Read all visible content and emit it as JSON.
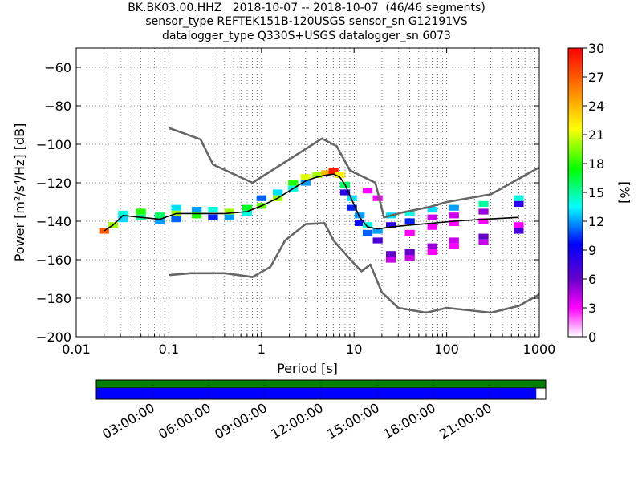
{
  "header": {
    "line1": "BK.BK03.00.HHZ   2018-10-07 -- 2018-10-07  (46/46 segments)",
    "line2": "sensor_type REFTEK151B-120USGS sensor_sn G12191VS",
    "line3": "datalogger_type Q330S+USGS datalogger_sn 6073"
  },
  "chart_data": [
    {
      "type": "heatmap",
      "xlabel": "Period [s]",
      "ylabel": "Power [m²/s⁴/Hz] [dB]",
      "x_scale": "log",
      "xlim": [
        0.01,
        1000
      ],
      "ylim": [
        -200,
        -50
      ],
      "x_ticks": [
        0.01,
        0.1,
        1,
        10,
        100,
        1000
      ],
      "x_tick_labels": [
        "0.01",
        "0.1",
        "1",
        "10",
        "100",
        "1000"
      ],
      "y_ticks": [
        -200,
        -180,
        -160,
        -140,
        -120,
        -100,
        -80,
        -60
      ],
      "y_tick_labels": [
        "−200",
        "−180",
        "−160",
        "−140",
        "−120",
        "−100",
        "−80",
        "−60"
      ],
      "grid": true,
      "colorbar": {
        "label": "[%]",
        "range": [
          0,
          30
        ],
        "ticks": [
          0,
          3,
          6,
          9,
          12,
          15,
          18,
          21,
          24,
          27,
          30
        ],
        "colors": [
          "#ffffff",
          "#ff00ff",
          "#6600cc",
          "#0000ff",
          "#00ffff",
          "#00ff00",
          "#ffff00",
          "#ff8800",
          "#ff0000"
        ]
      },
      "series": [
        {
          "x": [
            0.1,
            0.22,
            0.3,
            0.8,
            4.5,
            6.5,
            9.0,
            17,
            21,
            33,
            66,
            100,
            300,
            1000
          ],
          "y": [
            -91.5,
            -97.4,
            -110.5,
            -120,
            -97,
            -101,
            -113.5,
            -120,
            -138,
            -135.5,
            -132.5,
            -130,
            -126,
            -112
          ]
        },
        {
          "x": [
            0.1,
            0.17,
            0.4,
            0.8,
            1.25,
            1.8,
            3.0,
            4.8,
            6.0,
            10,
            12,
            15,
            20,
            30,
            60,
            100,
            300,
            600,
            1000
          ],
          "y": [
            -168,
            -167,
            -167,
            -169,
            -163.7,
            -150,
            -141.5,
            -141,
            -150,
            -162,
            -166,
            -162.5,
            -177,
            -185,
            -187.5,
            -185,
            -187.5,
            -184,
            -178
          ]
        }
      ],
      "median": {
        "x": [
          0.02,
          0.025,
          0.032,
          0.05,
          0.08,
          0.12,
          0.2,
          0.4,
          0.7,
          1.0,
          1.5,
          2.2,
          3.0,
          4.0,
          5.0,
          6.0,
          7.0,
          8.0,
          9.5,
          11.5,
          14,
          18,
          25,
          40,
          70,
          120,
          250,
          600
        ],
        "y": [
          -145,
          -142,
          -137,
          -138,
          -139,
          -136,
          -136,
          -136,
          -135,
          -132,
          -128,
          -123,
          -119,
          -117,
          -116,
          -115.5,
          -117,
          -121,
          -129,
          -138,
          -143,
          -144,
          -143,
          -142,
          -141,
          -140,
          -139,
          -138
        ]
      },
      "distribution": [
        {
          "x": 0.02,
          "y": -145,
          "pct": 27
        },
        {
          "x": 0.025,
          "y": -142,
          "pct": 20
        },
        {
          "x": 0.032,
          "y": -136,
          "pct": 14
        },
        {
          "x": 0.032,
          "y": -139,
          "pct": 13
        },
        {
          "x": 0.05,
          "y": -135,
          "pct": 18
        },
        {
          "x": 0.05,
          "y": -138,
          "pct": 15
        },
        {
          "x": 0.08,
          "y": -137,
          "pct": 16
        },
        {
          "x": 0.08,
          "y": -140,
          "pct": 12
        },
        {
          "x": 0.12,
          "y": -133,
          "pct": 13
        },
        {
          "x": 0.12,
          "y": -136,
          "pct": 20
        },
        {
          "x": 0.12,
          "y": -139,
          "pct": 11
        },
        {
          "x": 0.2,
          "y": -134,
          "pct": 12
        },
        {
          "x": 0.2,
          "y": -137,
          "pct": 18
        },
        {
          "x": 0.3,
          "y": -134,
          "pct": 14
        },
        {
          "x": 0.3,
          "y": -138,
          "pct": 10
        },
        {
          "x": 0.45,
          "y": -135,
          "pct": 20
        },
        {
          "x": 0.45,
          "y": -138,
          "pct": 12
        },
        {
          "x": 0.7,
          "y": -133,
          "pct": 17
        },
        {
          "x": 0.7,
          "y": -136,
          "pct": 14
        },
        {
          "x": 1.0,
          "y": -128,
          "pct": 11
        },
        {
          "x": 1.0,
          "y": -132,
          "pct": 19
        },
        {
          "x": 1.5,
          "y": -125,
          "pct": 13
        },
        {
          "x": 1.5,
          "y": -128,
          "pct": 20
        },
        {
          "x": 2.2,
          "y": -120,
          "pct": 18
        },
        {
          "x": 2.2,
          "y": -123,
          "pct": 14
        },
        {
          "x": 3.0,
          "y": -117,
          "pct": 21
        },
        {
          "x": 3.0,
          "y": -120,
          "pct": 12
        },
        {
          "x": 4.0,
          "y": -116,
          "pct": 20
        },
        {
          "x": 5.0,
          "y": -115,
          "pct": 24
        },
        {
          "x": 6.0,
          "y": -114,
          "pct": 29
        },
        {
          "x": 7.0,
          "y": -116,
          "pct": 22
        },
        {
          "x": 8.0,
          "y": -121,
          "pct": 16
        },
        {
          "x": 8.0,
          "y": -125,
          "pct": 8
        },
        {
          "x": 9.5,
          "y": -128,
          "pct": 13
        },
        {
          "x": 9.5,
          "y": -133,
          "pct": 10
        },
        {
          "x": 11.5,
          "y": -137,
          "pct": 12
        },
        {
          "x": 11.5,
          "y": -141,
          "pct": 9
        },
        {
          "x": 14,
          "y": -142,
          "pct": 14
        },
        {
          "x": 14,
          "y": -146,
          "pct": 11
        },
        {
          "x": 14,
          "y": -124,
          "pct": 3
        },
        {
          "x": 18,
          "y": -128,
          "pct": 3
        },
        {
          "x": 18,
          "y": -145,
          "pct": 12
        },
        {
          "x": 18,
          "y": -150,
          "pct": 7
        },
        {
          "x": 25,
          "y": -137,
          "pct": 13
        },
        {
          "x": 25,
          "y": -142,
          "pct": 8
        },
        {
          "x": 25,
          "y": -157,
          "pct": 6
        },
        {
          "x": 25,
          "y": -160,
          "pct": 4
        },
        {
          "x": 40,
          "y": -136,
          "pct": 14
        },
        {
          "x": 40,
          "y": -140,
          "pct": 10
        },
        {
          "x": 40,
          "y": -146,
          "pct": 3
        },
        {
          "x": 40,
          "y": -156,
          "pct": 6
        },
        {
          "x": 40,
          "y": -159,
          "pct": 4
        },
        {
          "x": 70,
          "y": -134,
          "pct": 13
        },
        {
          "x": 70,
          "y": -138,
          "pct": 4
        },
        {
          "x": 70,
          "y": -143,
          "pct": 3
        },
        {
          "x": 70,
          "y": -153,
          "pct": 5
        },
        {
          "x": 70,
          "y": -156,
          "pct": 3
        },
        {
          "x": 120,
          "y": -133,
          "pct": 12
        },
        {
          "x": 120,
          "y": -137,
          "pct": 4
        },
        {
          "x": 120,
          "y": -141,
          "pct": 3
        },
        {
          "x": 120,
          "y": -150,
          "pct": 4
        },
        {
          "x": 120,
          "y": -153,
          "pct": 3
        },
        {
          "x": 250,
          "y": -131,
          "pct": 15
        },
        {
          "x": 250,
          "y": -135,
          "pct": 5
        },
        {
          "x": 250,
          "y": -140,
          "pct": 3
        },
        {
          "x": 250,
          "y": -148,
          "pct": 6
        },
        {
          "x": 250,
          "y": -151,
          "pct": 4
        },
        {
          "x": 600,
          "y": -128,
          "pct": 14
        },
        {
          "x": 600,
          "y": -131,
          "pct": 8
        },
        {
          "x": 600,
          "y": -142,
          "pct": 3
        },
        {
          "x": 600,
          "y": -145,
          "pct": 7
        }
      ]
    },
    {
      "type": "bar",
      "timeline_labels": [
        "03:00:00",
        "06:00:00",
        "09:00:00",
        "12:00:00",
        "15:00:00",
        "18:00:00",
        "21:00:00"
      ],
      "data_available_fraction": 1.0,
      "psd_coverage_fraction": 0.979,
      "colors": {
        "available": "#008000",
        "psd": "#0000ff"
      }
    }
  ]
}
